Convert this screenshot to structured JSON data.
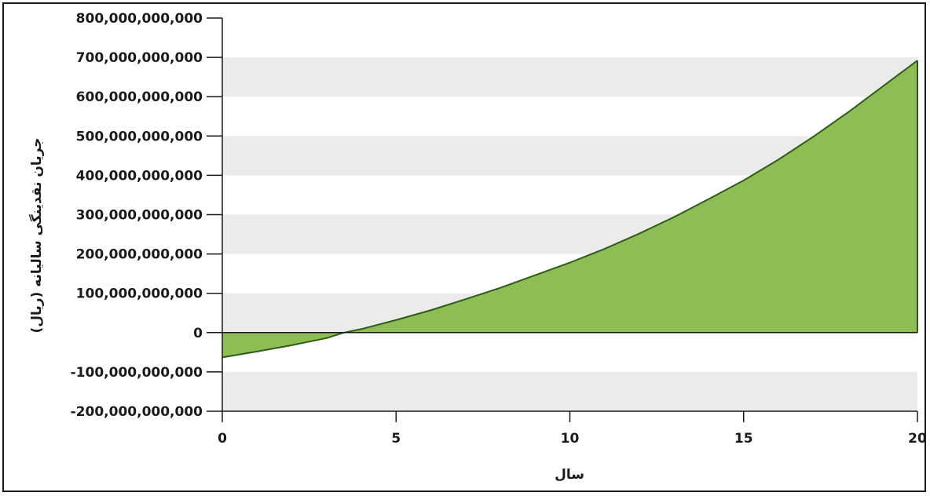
{
  "chart_data": {
    "type": "area",
    "title": "",
    "xlabel": "سال",
    "ylabel": "جریان نقدینگی سالیانه (ریال)",
    "xlim": [
      0,
      20
    ],
    "ylim": [
      -200000000000,
      800000000000
    ],
    "x_ticks": [
      0,
      5,
      10,
      15,
      20
    ],
    "x_tick_labels": [
      "0",
      "5",
      "10",
      "15",
      "20"
    ],
    "y_ticks": [
      -200000000000,
      -100000000000,
      0,
      100000000000,
      200000000000,
      300000000000,
      400000000000,
      500000000000,
      600000000000,
      700000000000,
      800000000000
    ],
    "y_tick_labels": [
      "-200,000,000,000",
      "-100,000,000,000",
      "0",
      "100,000,000,000",
      "200,000,000,000",
      "300,000,000,000",
      "400,000,000,000",
      "500,000,000,000",
      "600,000,000,000",
      "700,000,000,000",
      "800,000,000,000"
    ],
    "grid": "alternating horizontal bands",
    "legend": "none",
    "colors": {
      "fill": "#8fbd55",
      "line": "#2f5a1c",
      "band": "#ebebeb",
      "axis": "#1a1a1a"
    },
    "x": [
      0,
      1,
      2,
      3,
      3.5,
      4,
      5,
      6,
      7,
      8,
      9,
      10,
      11,
      12,
      13,
      14,
      15,
      16,
      17,
      18,
      19,
      20
    ],
    "y": [
      -63000000000,
      -48000000000,
      -32000000000,
      -14000000000,
      0,
      9000000000,
      32000000000,
      57000000000,
      85000000000,
      114000000000,
      146000000000,
      178000000000,
      213000000000,
      252000000000,
      294000000000,
      340000000000,
      387000000000,
      440000000000,
      498000000000,
      560000000000,
      626000000000,
      692000000000
    ]
  }
}
